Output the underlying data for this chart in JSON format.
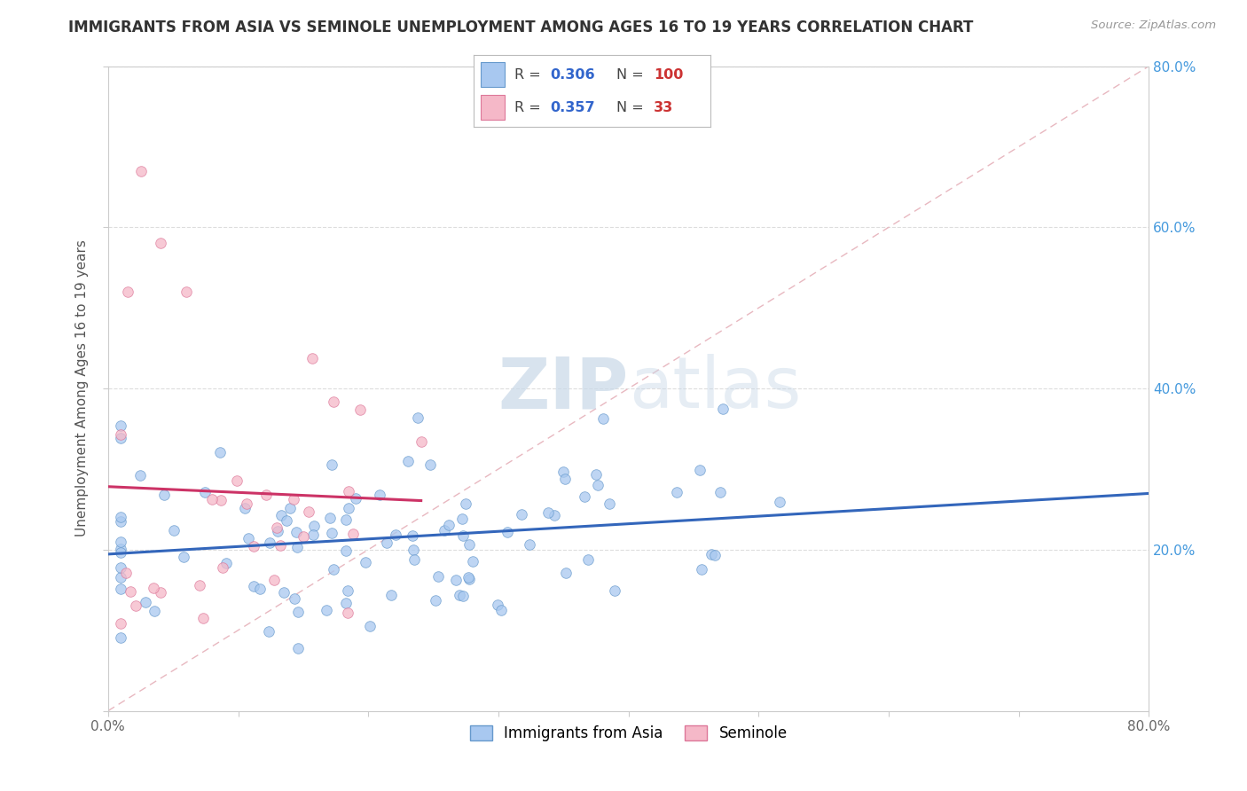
{
  "title": "IMMIGRANTS FROM ASIA VS SEMINOLE UNEMPLOYMENT AMONG AGES 16 TO 19 YEARS CORRELATION CHART",
  "source": "Source: ZipAtlas.com",
  "ylabel": "Unemployment Among Ages 16 to 19 years",
  "xlim": [
    0.0,
    0.8
  ],
  "ylim": [
    0.0,
    0.8
  ],
  "right_ytick_vals": [
    0.2,
    0.4,
    0.6,
    0.8
  ],
  "right_ytick_labels": [
    "20.0%",
    "40.0%",
    "60.0%",
    "80.0%"
  ],
  "xtick_vals": [
    0.0,
    0.1,
    0.2,
    0.3,
    0.4,
    0.5,
    0.6,
    0.7,
    0.8
  ],
  "xtick_labels": [
    "0.0%",
    "",
    "",
    "",
    "",
    "",
    "",
    "",
    "80.0%"
  ],
  "blue_color": "#a8c8f0",
  "blue_edge": "#6699cc",
  "pink_color": "#f5b8c8",
  "pink_edge": "#dd7799",
  "blue_trend_color": "#3366bb",
  "pink_trend_color": "#cc3366",
  "diag_color": "#e8b8c0",
  "grid_color": "#dddddd",
  "watermark_color": "#c8d8e8",
  "right_tick_color": "#4499dd",
  "background": "#ffffff",
  "legend_box_color": "#ffffff",
  "legend_border_color": "#bbbbbb",
  "R_color": "#3366cc",
  "N_color": "#cc3333",
  "title_color": "#333333",
  "source_color": "#999999",
  "ylabel_color": "#555555"
}
